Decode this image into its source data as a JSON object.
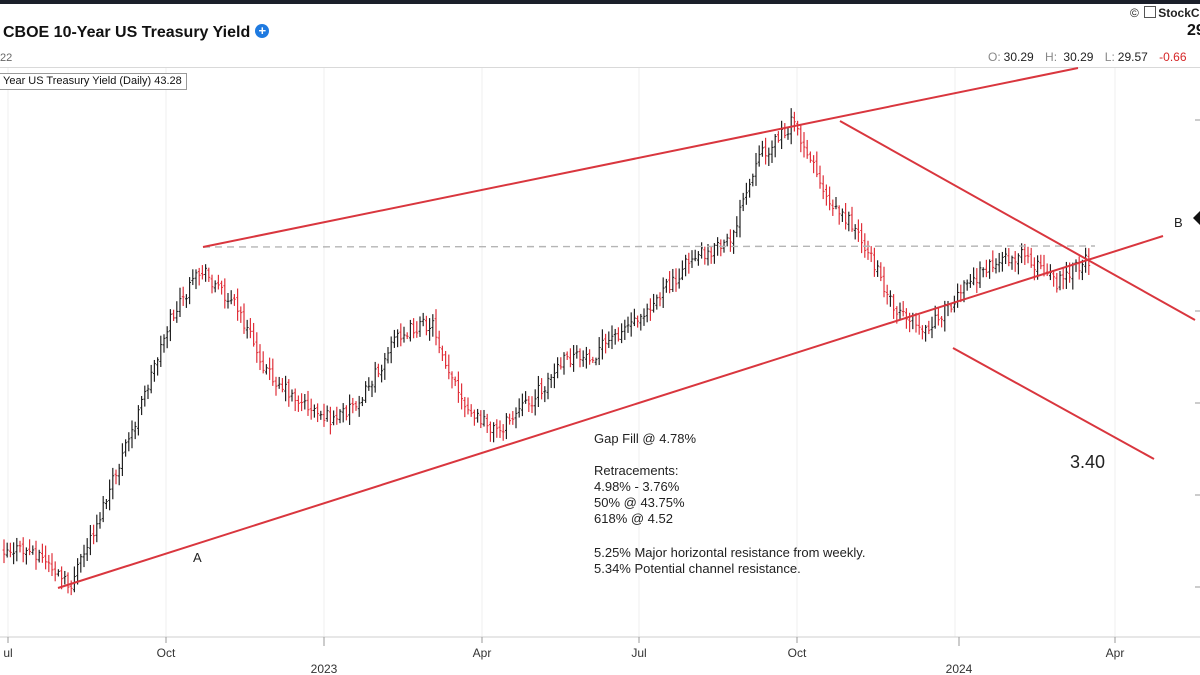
{
  "header": {
    "title": "CBOE 10-Year US Treasury Yield",
    "date_fragment": "22",
    "copyright": "©",
    "brand": "StockC",
    "last_price": "29",
    "ohlc": {
      "open_label": "O:",
      "open": "30.29",
      "high_label": "H: ",
      "high": "30.29",
      "low_label": "L:",
      "low": "29.57",
      "change": "-0.66"
    }
  },
  "legend": {
    "label": "Year US Treasury Yield (Daily) 43.28"
  },
  "annotations": {
    "gap_fill": "Gap Fill @ 4.78%",
    "retracements_title": "Retracements:",
    "retracement_range": "4.98% - 3.76%",
    "retracement_50": "50% @ 43.75%",
    "retracement_618": "618% @ 4.52",
    "resistance_weekly": "5.25% Major horizontal resistance from weekly.",
    "resistance_channel": "5.34% Potential channel resistance.",
    "target": "3.40",
    "point_a": "A",
    "point_b": "B"
  },
  "colors": {
    "up_bar": "#222222",
    "down_bar": "#e0303a",
    "trend_line": "#d9363e",
    "gap_line": "#b5b5b5"
  },
  "chart_data": {
    "type": "line",
    "subtype": "ohlc-bars",
    "title": "CBOE 10-Year US Treasury Yield",
    "x_tick_labels": [
      "ul",
      "Oct",
      "Apr",
      "Jul",
      "Oct",
      "Apr"
    ],
    "x_year_labels": [
      "2023",
      "2024"
    ],
    "x": [
      "2022-07",
      "2022-08",
      "2022-08",
      "2022-09",
      "2022-09",
      "2022-10",
      "2022-10",
      "2022-11",
      "2022-11",
      "2022-12",
      "2023-01",
      "2023-01",
      "2023-02",
      "2023-03",
      "2023-03",
      "2023-04",
      "2023-05",
      "2023-05",
      "2023-06",
      "2023-07",
      "2023-07",
      "2023-08",
      "2023-09",
      "2023-10",
      "2023-10",
      "2023-11",
      "2023-11",
      "2023-12",
      "2023-12",
      "2024-01",
      "2024-02",
      "2024-02",
      "2024-03",
      "2024-03"
    ],
    "series": [
      {
        "values": [
          2.8,
          2.78,
          2.6,
          3.0,
          3.45,
          3.95,
          4.22,
          4.05,
          3.7,
          3.55,
          3.45,
          3.6,
          3.9,
          3.95,
          3.5,
          3.4,
          3.55,
          3.75,
          3.8,
          3.95,
          4.1,
          4.3,
          4.35,
          4.8,
          4.98,
          4.6,
          4.4,
          4.05,
          3.9,
          4.1,
          4.25,
          4.3,
          4.15,
          4.28
        ]
      }
    ],
    "horizontal_level": 4.25,
    "channel_lines": [
      "A to upper channel",
      "A to B lower channel",
      "downtrend from Oct 2023 high",
      "target projection 3.40"
    ]
  }
}
